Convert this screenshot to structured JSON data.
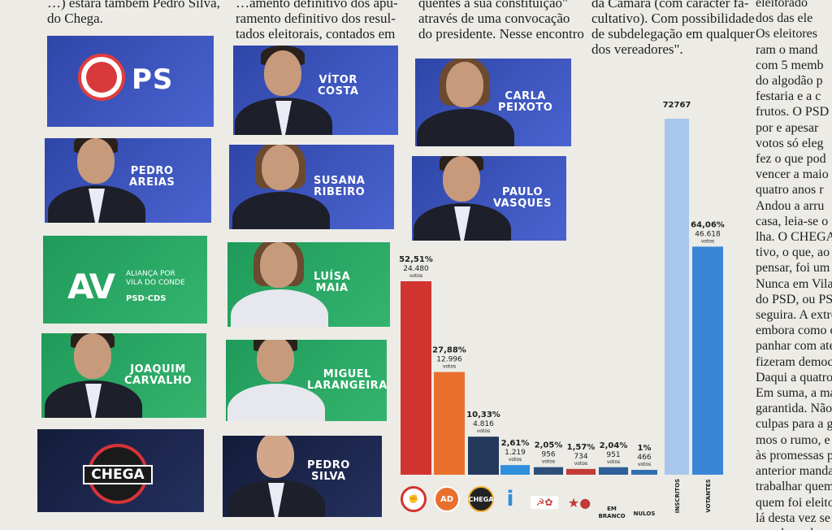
{
  "article": {
    "col1": [
      "…) estará também Pedro Silva,",
      "do Chega."
    ],
    "col2": [
      "…amento definitivo dos apu-",
      "ramento definitivo dos resul-",
      "tados eleitorais, contados em"
    ],
    "col3": [
      "quentes à sua constituição\"",
      "através de uma convocação",
      "do presidente. Nesse encontro"
    ],
    "col4": [
      "da Câmara (com carácter fa-",
      "cultativo). Com possibilidade",
      "de subdelegação em qualquer",
      "dos vereadores\"."
    ],
    "col5": [
      "eleitorado",
      "dos das ele",
      "Os eleitores",
      "ram o mand",
      "com 5 memb",
      "do algodão p",
      "festaria e a c",
      "frutos. O PSD",
      "por e apesar",
      "votos só eleg",
      "fez o que pod",
      "vencer a maio",
      "quatro anos r",
      "Andou a arru",
      "casa, leia-se o",
      "lha. O CHEGA",
      "tivo, o que, ao",
      "pensar, foi um",
      "Nunca em Vila",
      "do PSD, ou PSD",
      "seguira. A extre",
      "embora como o",
      "panhar com aten",
      "fizeram democra",
      "Daqui a quatro a",
      "Em suma, a maio",
      "garantida. Não h",
      "culpas para a gov",
      "mos o rumo, e não",
      "às promessas po",
      "anterior mandato",
      "trabalhar quem fo",
      "quem foi eleito pa",
      "lá desta vez se cum",
      "para bem de todos"
    ]
  },
  "tiles": {
    "ps_logo_text": "PS",
    "vitor": [
      "VÍTOR",
      "COSTA"
    ],
    "carla": [
      "CARLA",
      "PEIXOTO"
    ],
    "pedro_areias": [
      "PEDRO",
      "AREIAS"
    ],
    "susana": [
      "SUSANA",
      "RIBEIRO"
    ],
    "paulo": [
      "PAULO",
      "VASQUES"
    ],
    "av_mark": "AV",
    "av_sub": [
      "ALIANÇA POR",
      "VILA DO CONDE"
    ],
    "av_foot": "PSD·CDS",
    "luisa": [
      "LUÍSA",
      "MAIA"
    ],
    "joaquim": [
      "JOAQUIM",
      "CARVALHO"
    ],
    "miguel": [
      "MIGUEL",
      "LARANGEIRA"
    ],
    "chega_word": "CHEGA",
    "pedro_silva": [
      "PEDRO",
      "SILVA"
    ]
  },
  "chart_data": {
    "type": "bar",
    "categories": [
      "PS",
      "AD",
      "CHEGA",
      "IL",
      "CDU",
      "BE",
      "EM BRANCO",
      "NULOS",
      "INSCRITOS",
      "VOTANTES"
    ],
    "series": [
      {
        "values": [
          24480,
          12996,
          4816,
          1219,
          956,
          734,
          951,
          466,
          72767,
          46618
        ],
        "percents": [
          "52,51%",
          "27,88%",
          "10,33%",
          "2,61%",
          "2,05%",
          "1,57%",
          "2,04%",
          "1%",
          "",
          "64,06%"
        ],
        "value_labels": [
          "24.480",
          "12.996",
          "4.816",
          "1.219",
          "956",
          "734",
          "951",
          "466",
          "72767",
          "46.618"
        ],
        "unit": "votos"
      }
    ],
    "colors": [
      "#d2342f",
      "#e8702c",
      "#233a5c",
      "#2f8fdb",
      "#2d4f7a",
      "#c23a36",
      "#2f5f9a",
      "#2f6fb0",
      "#a9c6ec",
      "#3a86d6"
    ],
    "axis_labels": [
      "",
      "",
      "",
      "",
      "",
      "",
      "EM BRANCO",
      "NULOS",
      "INSCRITOS",
      "VOTANTES"
    ]
  }
}
